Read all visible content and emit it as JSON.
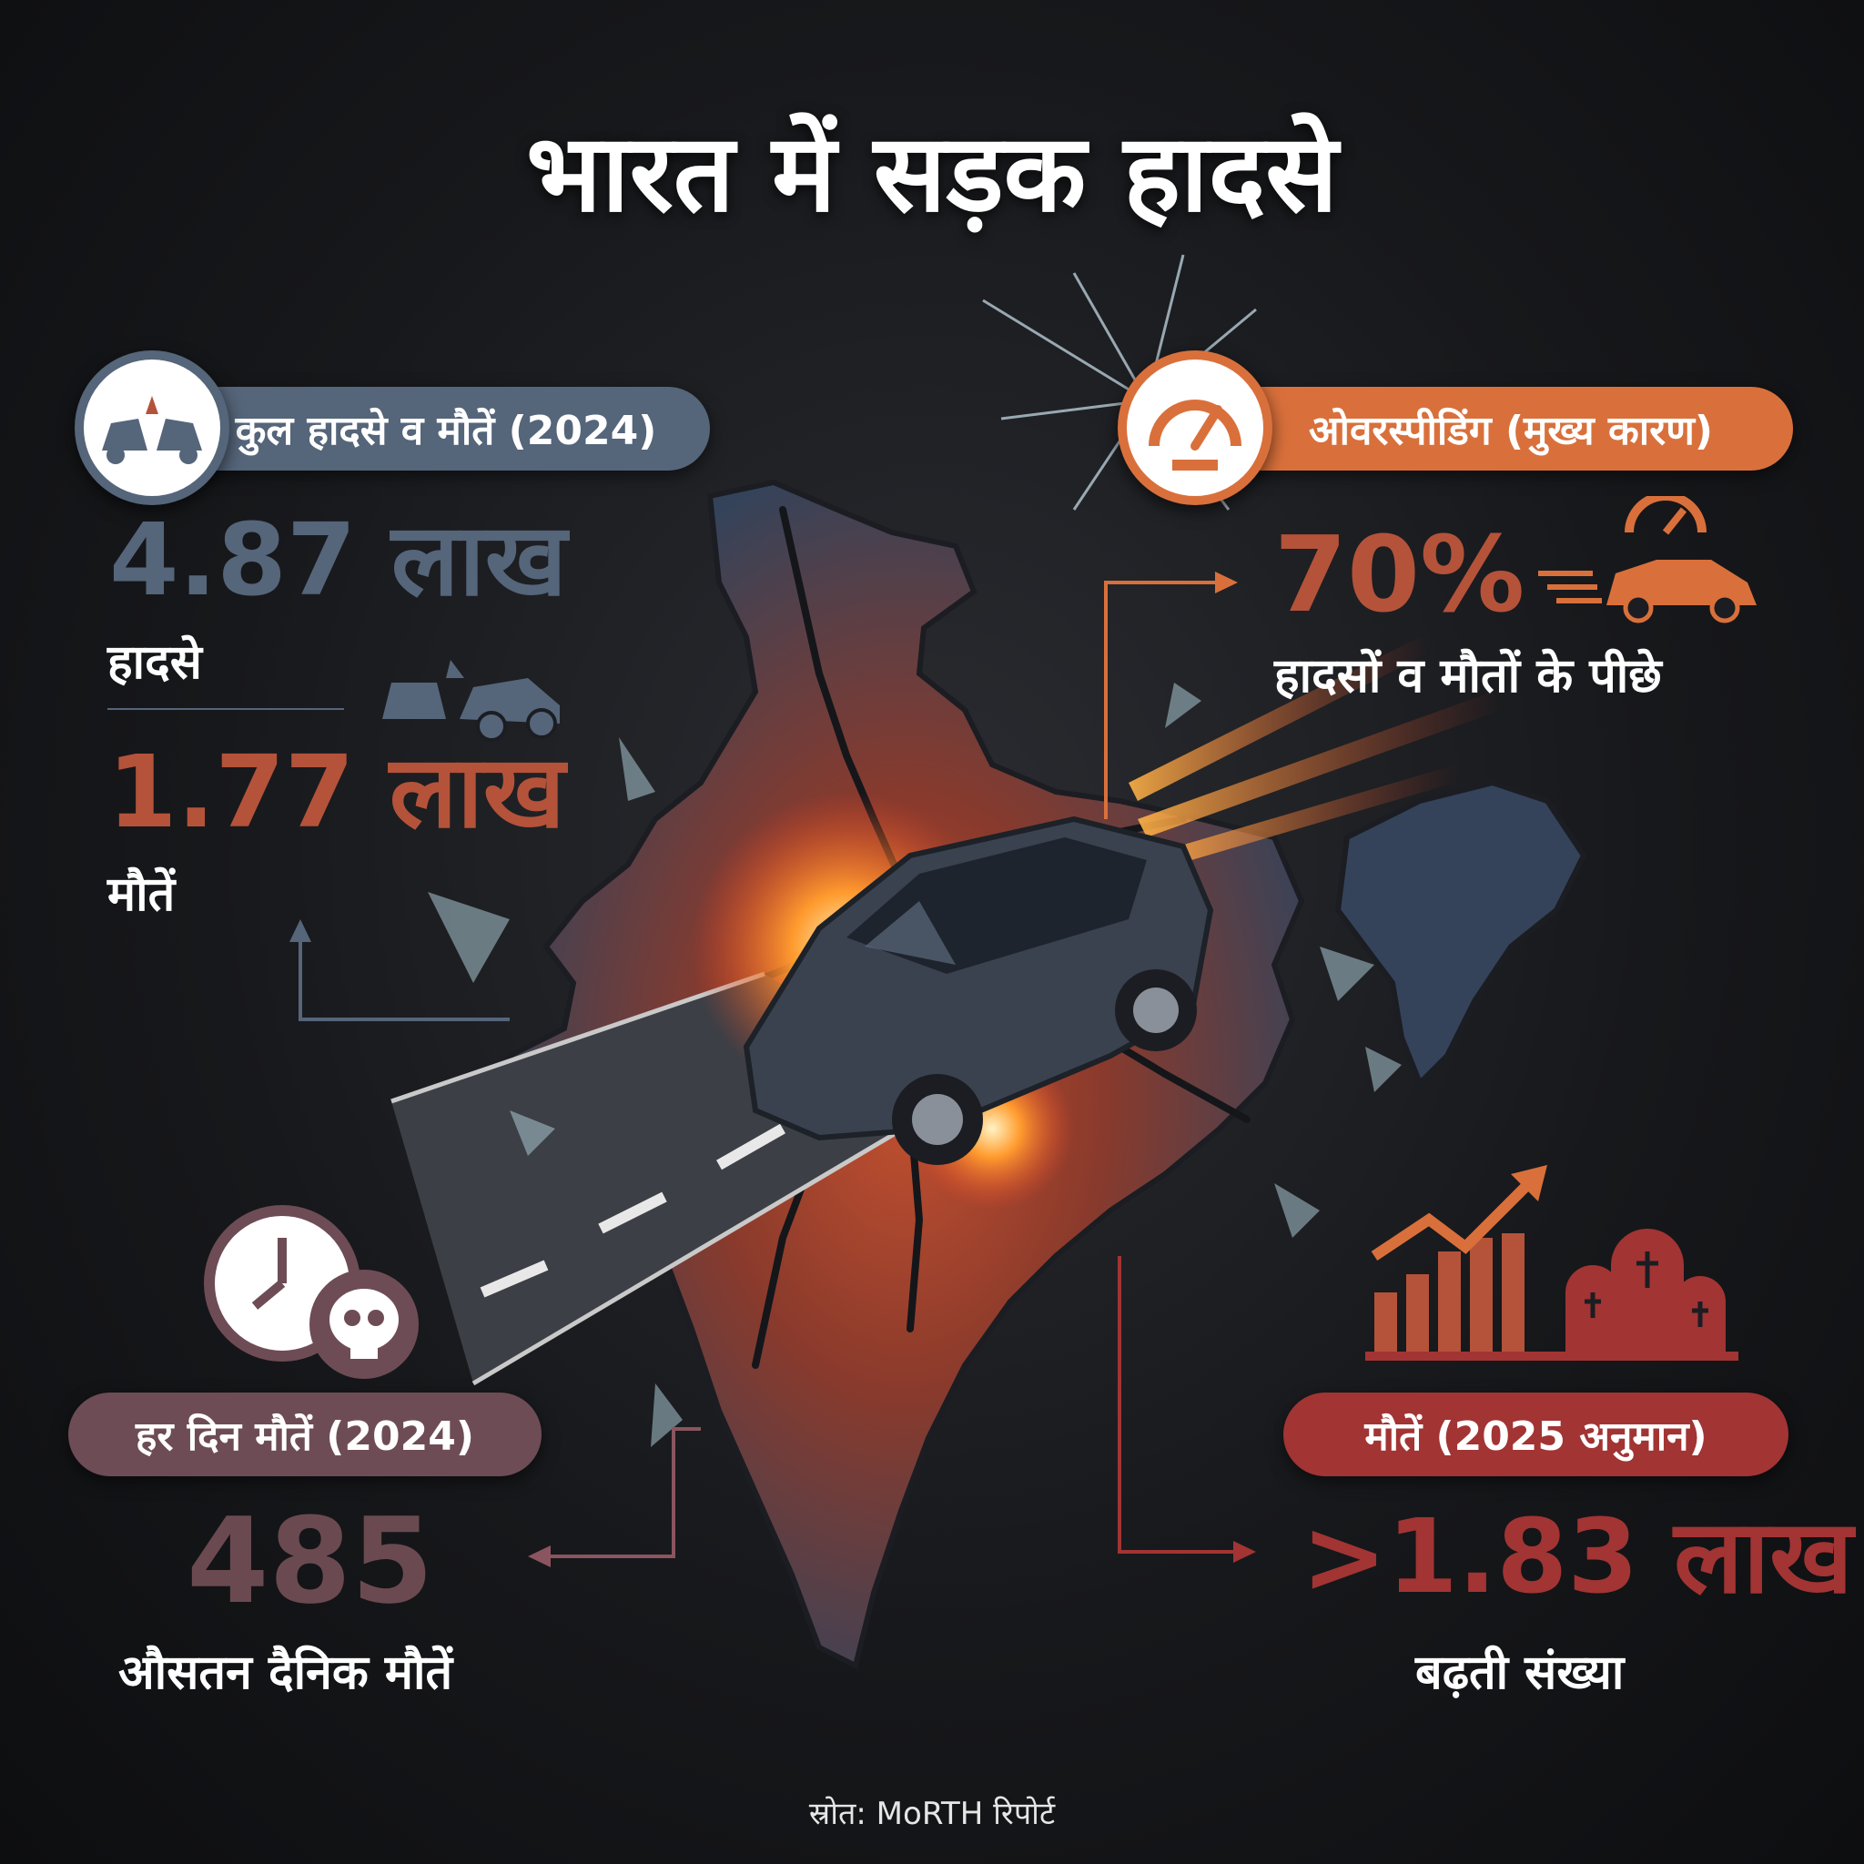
{
  "title": "भारत में सड़क हादसे",
  "total": {
    "header": "कुल हादसे व मौतें (2024)",
    "accidents_value": "4.87 लाख",
    "accidents_label": "हादसे",
    "deaths_value": "1.77 लाख",
    "deaths_label": "मौतें"
  },
  "overspeeding": {
    "header": "ओवरस्पीडिंग (मुख्य कारण)",
    "value": "70%",
    "label": "हादसों व मौतों के पीछे"
  },
  "daily": {
    "header": "हर दिन मौतें (2024)",
    "value": "485",
    "label": "औसतन दैनिक मौतें"
  },
  "estimate": {
    "header": "मौतें (2025 अनुमान)",
    "value": ">1.83 लाख",
    "label": "बढ़ती संख्या"
  },
  "source": "स्रोत: MoRTH रिपोर्ट",
  "colors": {
    "slate": "#55657a",
    "orange": "#d9703b",
    "brown_red": "#b4533a",
    "crimson": "#a23434",
    "mauve": "#6e4c55",
    "mauve_text": "#6a4a50",
    "map_blue": "#34435a",
    "map_red": "#8a3a2c"
  }
}
